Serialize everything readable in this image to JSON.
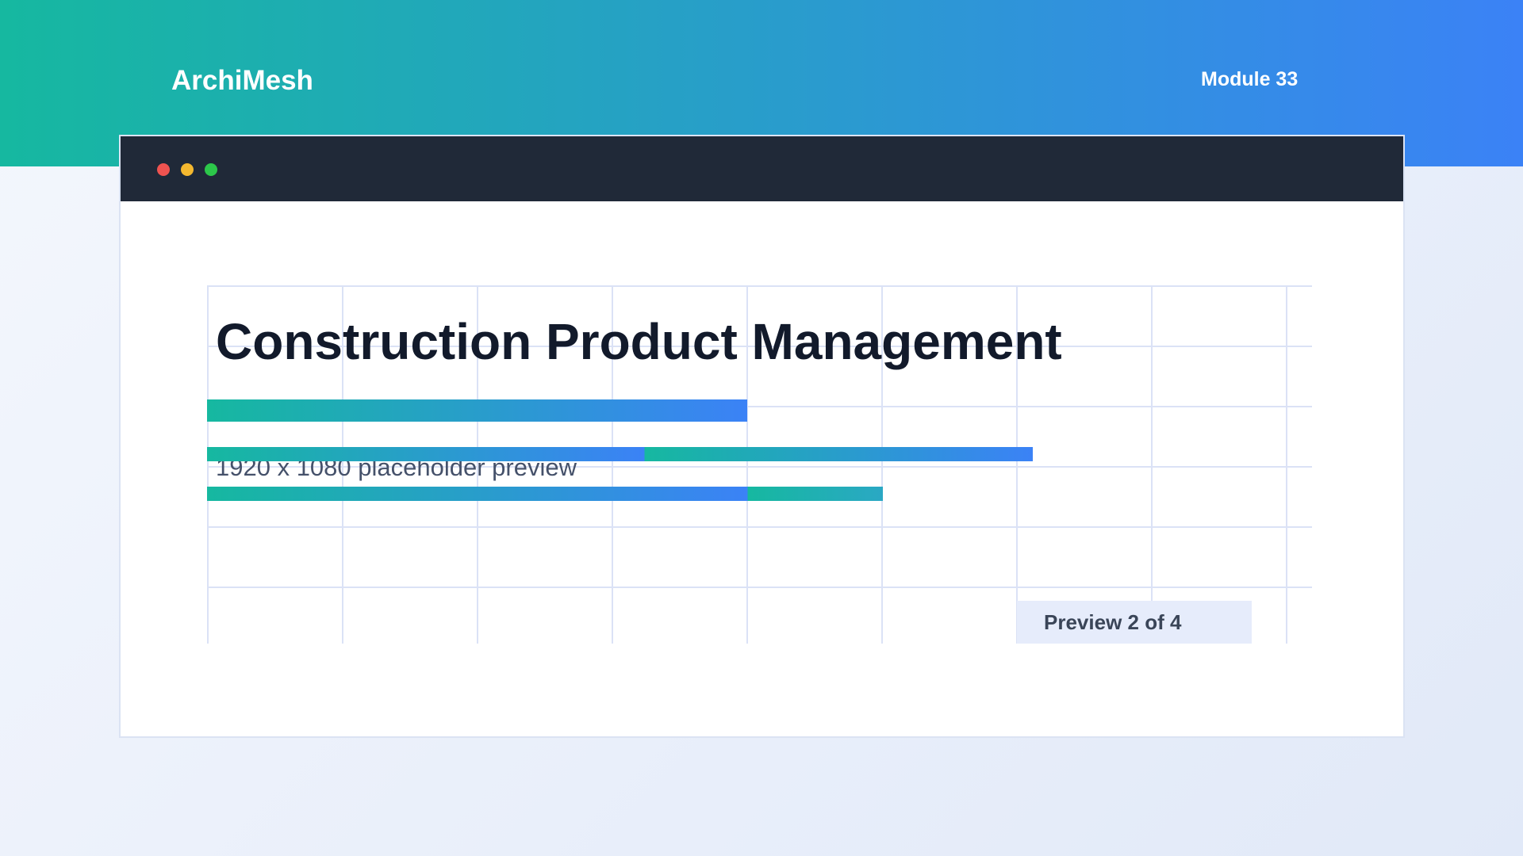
{
  "header": {
    "brand": "ArchiMesh",
    "module_label": "Module 33"
  },
  "window": {
    "controls": [
      "close-dot",
      "minimize-dot",
      "maximize-dot"
    ]
  },
  "main": {
    "title": "Construction Product Management",
    "subtitle": "1920 x 1080 placeholder preview",
    "preview_badge": "Preview 2 of 4"
  },
  "colors": {
    "accent_start": "#16b8a0",
    "accent_end": "#3b82f6",
    "titlebar": "#202938",
    "close": "#ef5350",
    "minimize": "#f4b82f",
    "maximize": "#2cc74a"
  }
}
